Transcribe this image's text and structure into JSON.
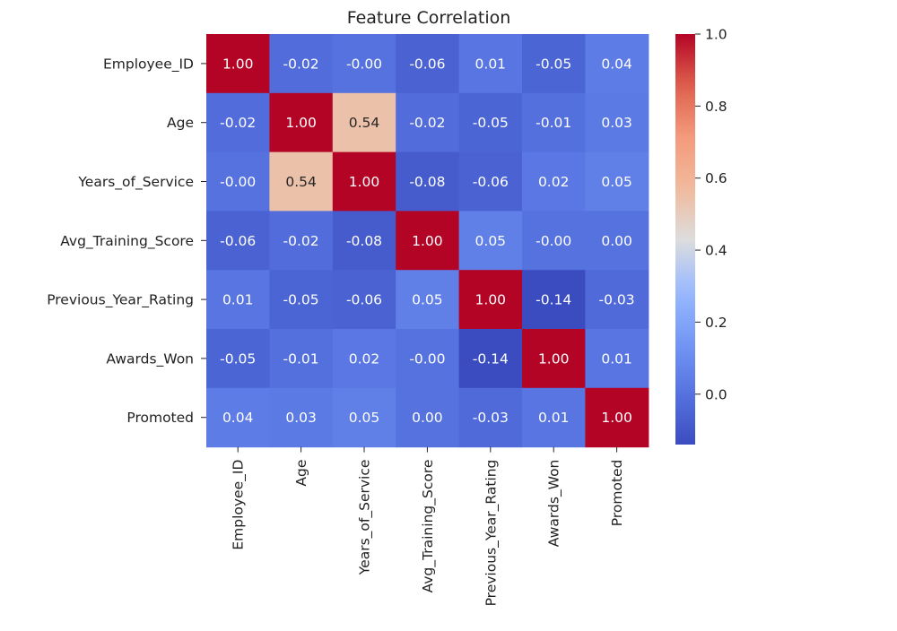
{
  "chart_data": {
    "type": "heatmap",
    "title": "Feature Correlation",
    "rows": [
      "Employee_ID",
      "Age",
      "Years_of_Service",
      "Avg_Training_Score",
      "Previous_Year_Rating",
      "Awards_Won",
      "Promoted"
    ],
    "columns": [
      "Employee_ID",
      "Age",
      "Years_of_Service",
      "Avg_Training_Score",
      "Previous_Year_Rating",
      "Awards_Won",
      "Promoted"
    ],
    "values": [
      [
        1.0,
        -0.02,
        -0.0,
        -0.06,
        0.01,
        -0.05,
        0.04
      ],
      [
        -0.02,
        1.0,
        0.54,
        -0.02,
        -0.05,
        -0.01,
        0.03
      ],
      [
        -0.0,
        0.54,
        1.0,
        -0.08,
        -0.06,
        0.02,
        0.05
      ],
      [
        -0.06,
        -0.02,
        -0.08,
        1.0,
        0.05,
        -0.0,
        0.0
      ],
      [
        0.01,
        -0.05,
        -0.06,
        0.05,
        1.0,
        -0.14,
        -0.03
      ],
      [
        -0.05,
        -0.01,
        0.02,
        -0.0,
        -0.14,
        1.0,
        0.01
      ],
      [
        0.04,
        0.03,
        0.05,
        0.0,
        -0.03,
        0.01,
        1.0
      ]
    ],
    "cell_labels": [
      [
        "1.00",
        "-0.02",
        "-0.00",
        "-0.06",
        "0.01",
        "-0.05",
        "0.04"
      ],
      [
        "-0.02",
        "1.00",
        "0.54",
        "-0.02",
        "-0.05",
        "-0.01",
        "0.03"
      ],
      [
        "-0.00",
        "0.54",
        "1.00",
        "-0.08",
        "-0.06",
        "0.02",
        "0.05"
      ],
      [
        "-0.06",
        "-0.02",
        "-0.08",
        "1.00",
        "0.05",
        "-0.00",
        "0.00"
      ],
      [
        "0.01",
        "-0.05",
        "-0.06",
        "0.05",
        "1.00",
        "-0.14",
        "-0.03"
      ],
      [
        "-0.05",
        "-0.01",
        "0.02",
        "-0.00",
        "-0.14",
        "1.00",
        "0.01"
      ],
      [
        "0.04",
        "0.03",
        "0.05",
        "0.00",
        "-0.03",
        "0.01",
        "1.00"
      ]
    ],
    "colormap": "coolwarm",
    "colorbar": {
      "vmin": -0.14,
      "vmax": 1.0,
      "ticks": [
        0.0,
        0.2,
        0.4,
        0.6,
        0.8,
        1.0
      ],
      "tick_labels": [
        "0.0",
        "0.2",
        "0.4",
        "0.6",
        "0.8",
        "1.0"
      ],
      "placement": "right"
    },
    "grid": false
  }
}
